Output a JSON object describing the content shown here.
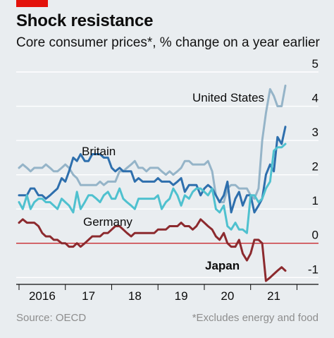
{
  "header": {
    "title": "Shock resistance",
    "subtitle": "Core consumer prices*, % change on a year earlier"
  },
  "footer": {
    "source": "Source: OECD",
    "footnote": "*Excludes energy and food"
  },
  "colors": {
    "background": "#e9edf0",
    "brand_red": "#e3120b",
    "grid": "#ffffff",
    "zero_line": "#c4161c"
  },
  "chart_data": {
    "type": "line",
    "title": "Shock resistance",
    "subtitle": "Core consumer prices*, % change on a year earlier",
    "xlabel": "",
    "ylabel": "",
    "x_tick_labels": [
      "2016",
      "17",
      "18",
      "19",
      "20",
      "21"
    ],
    "xlim": [
      2016.0,
      2021.75
    ],
    "ylim": [
      -1.2,
      5
    ],
    "y_ticks": [
      5,
      4,
      3,
      2,
      1,
      0,
      -1
    ],
    "y_tick_labels": [
      "5",
      "4",
      "3",
      "2",
      "1",
      "0",
      "-1"
    ],
    "grid": true,
    "series": [
      {
        "name": "United States",
        "color": "#95b4c8",
        "stroke_width": 3,
        "points": [
          [
            2016.0,
            2.2
          ],
          [
            2016.08,
            2.3
          ],
          [
            2016.17,
            2.2
          ],
          [
            2016.25,
            2.1
          ],
          [
            2016.33,
            2.2
          ],
          [
            2016.42,
            2.2
          ],
          [
            2016.5,
            2.2
          ],
          [
            2016.58,
            2.3
          ],
          [
            2016.67,
            2.2
          ],
          [
            2016.75,
            2.1
          ],
          [
            2016.83,
            2.1
          ],
          [
            2016.92,
            2.2
          ],
          [
            2017.0,
            2.3
          ],
          [
            2017.08,
            2.2
          ],
          [
            2017.17,
            2.0
          ],
          [
            2017.25,
            1.9
          ],
          [
            2017.33,
            1.7
          ],
          [
            2017.42,
            1.7
          ],
          [
            2017.5,
            1.7
          ],
          [
            2017.58,
            1.7
          ],
          [
            2017.67,
            1.7
          ],
          [
            2017.75,
            1.8
          ],
          [
            2017.83,
            1.7
          ],
          [
            2017.92,
            1.8
          ],
          [
            2018.0,
            1.8
          ],
          [
            2018.08,
            1.8
          ],
          [
            2018.17,
            2.1
          ],
          [
            2018.25,
            2.1
          ],
          [
            2018.33,
            2.2
          ],
          [
            2018.42,
            2.3
          ],
          [
            2018.5,
            2.4
          ],
          [
            2018.58,
            2.2
          ],
          [
            2018.67,
            2.2
          ],
          [
            2018.75,
            2.1
          ],
          [
            2018.83,
            2.2
          ],
          [
            2018.92,
            2.2
          ],
          [
            2019.0,
            2.2
          ],
          [
            2019.08,
            2.1
          ],
          [
            2019.17,
            2.0
          ],
          [
            2019.25,
            2.1
          ],
          [
            2019.33,
            2.0
          ],
          [
            2019.42,
            2.1
          ],
          [
            2019.5,
            2.2
          ],
          [
            2019.58,
            2.4
          ],
          [
            2019.67,
            2.4
          ],
          [
            2019.75,
            2.3
          ],
          [
            2019.83,
            2.3
          ],
          [
            2019.92,
            2.3
          ],
          [
            2020.0,
            2.3
          ],
          [
            2020.08,
            2.4
          ],
          [
            2020.17,
            2.1
          ],
          [
            2020.25,
            1.4
          ],
          [
            2020.33,
            1.2
          ],
          [
            2020.42,
            1.2
          ],
          [
            2020.5,
            1.6
          ],
          [
            2020.58,
            1.7
          ],
          [
            2020.67,
            1.7
          ],
          [
            2020.75,
            1.6
          ],
          [
            2020.83,
            1.6
          ],
          [
            2020.92,
            1.6
          ],
          [
            2021.0,
            1.4
          ],
          [
            2021.08,
            1.3
          ],
          [
            2021.17,
            1.6
          ],
          [
            2021.25,
            3.0
          ],
          [
            2021.33,
            3.8
          ],
          [
            2021.42,
            4.5
          ],
          [
            2021.5,
            4.3
          ],
          [
            2021.58,
            4.0
          ],
          [
            2021.67,
            4.0
          ],
          [
            2021.75,
            4.6
          ]
        ]
      },
      {
        "name": "Britain",
        "color": "#2e6fad",
        "stroke_width": 3,
        "points": [
          [
            2016.0,
            1.4
          ],
          [
            2016.08,
            1.4
          ],
          [
            2016.17,
            1.4
          ],
          [
            2016.25,
            1.6
          ],
          [
            2016.33,
            1.6
          ],
          [
            2016.42,
            1.4
          ],
          [
            2016.5,
            1.4
          ],
          [
            2016.58,
            1.3
          ],
          [
            2016.67,
            1.4
          ],
          [
            2016.75,
            1.5
          ],
          [
            2016.83,
            1.6
          ],
          [
            2016.92,
            1.9
          ],
          [
            2017.0,
            1.8
          ],
          [
            2017.08,
            2.1
          ],
          [
            2017.17,
            2.5
          ],
          [
            2017.25,
            2.4
          ],
          [
            2017.33,
            2.6
          ],
          [
            2017.42,
            2.4
          ],
          [
            2017.5,
            2.4
          ],
          [
            2017.58,
            2.6
          ],
          [
            2017.67,
            2.6
          ],
          [
            2017.75,
            2.6
          ],
          [
            2017.83,
            2.5
          ],
          [
            2017.92,
            2.5
          ],
          [
            2018.0,
            2.2
          ],
          [
            2018.08,
            2.1
          ],
          [
            2018.17,
            2.2
          ],
          [
            2018.25,
            2.1
          ],
          [
            2018.33,
            2.1
          ],
          [
            2018.42,
            2.1
          ],
          [
            2018.5,
            1.8
          ],
          [
            2018.58,
            1.9
          ],
          [
            2018.67,
            1.8
          ],
          [
            2018.75,
            1.8
          ],
          [
            2018.83,
            1.8
          ],
          [
            2018.92,
            1.8
          ],
          [
            2019.0,
            1.9
          ],
          [
            2019.08,
            1.8
          ],
          [
            2019.17,
            1.8
          ],
          [
            2019.25,
            1.8
          ],
          [
            2019.33,
            1.7
          ],
          [
            2019.42,
            1.8
          ],
          [
            2019.5,
            1.9
          ],
          [
            2019.58,
            1.5
          ],
          [
            2019.67,
            1.7
          ],
          [
            2019.75,
            1.7
          ],
          [
            2019.83,
            1.7
          ],
          [
            2019.92,
            1.4
          ],
          [
            2020.0,
            1.6
          ],
          [
            2020.08,
            1.7
          ],
          [
            2020.17,
            1.6
          ],
          [
            2020.25,
            1.4
          ],
          [
            2020.33,
            1.2
          ],
          [
            2020.42,
            1.4
          ],
          [
            2020.5,
            1.8
          ],
          [
            2020.58,
            0.9
          ],
          [
            2020.67,
            1.3
          ],
          [
            2020.75,
            1.5
          ],
          [
            2020.83,
            1.1
          ],
          [
            2020.92,
            1.4
          ],
          [
            2021.0,
            1.4
          ],
          [
            2021.08,
            0.9
          ],
          [
            2021.17,
            1.1
          ],
          [
            2021.25,
            1.3
          ],
          [
            2021.33,
            2.0
          ],
          [
            2021.42,
            2.3
          ],
          [
            2021.5,
            2.1
          ],
          [
            2021.58,
            3.1
          ],
          [
            2021.67,
            2.9
          ],
          [
            2021.75,
            3.4
          ]
        ]
      },
      {
        "name": "Germany",
        "color": "#4fc1cf",
        "stroke_width": 3,
        "points": [
          [
            2016.0,
            1.2
          ],
          [
            2016.08,
            1.0
          ],
          [
            2016.17,
            1.4
          ],
          [
            2016.25,
            1.0
          ],
          [
            2016.33,
            1.2
          ],
          [
            2016.42,
            1.3
          ],
          [
            2016.5,
            1.3
          ],
          [
            2016.58,
            1.2
          ],
          [
            2016.67,
            1.2
          ],
          [
            2016.75,
            1.1
          ],
          [
            2016.83,
            1.0
          ],
          [
            2016.92,
            1.3
          ],
          [
            2017.0,
            1.2
          ],
          [
            2017.08,
            1.1
          ],
          [
            2017.17,
            0.9
          ],
          [
            2017.25,
            1.5
          ],
          [
            2017.33,
            1.0
          ],
          [
            2017.42,
            1.2
          ],
          [
            2017.5,
            1.4
          ],
          [
            2017.58,
            1.4
          ],
          [
            2017.67,
            1.3
          ],
          [
            2017.75,
            1.2
          ],
          [
            2017.83,
            1.4
          ],
          [
            2017.92,
            1.5
          ],
          [
            2018.0,
            1.3
          ],
          [
            2018.08,
            1.3
          ],
          [
            2018.17,
            1.6
          ],
          [
            2018.25,
            1.3
          ],
          [
            2018.33,
            1.2
          ],
          [
            2018.42,
            1.1
          ],
          [
            2018.5,
            1.0
          ],
          [
            2018.58,
            1.3
          ],
          [
            2018.67,
            1.3
          ],
          [
            2018.75,
            1.3
          ],
          [
            2018.83,
            1.3
          ],
          [
            2018.92,
            1.3
          ],
          [
            2019.0,
            1.4
          ],
          [
            2019.08,
            1.0
          ],
          [
            2019.17,
            1.2
          ],
          [
            2019.25,
            1.3
          ],
          [
            2019.33,
            1.6
          ],
          [
            2019.42,
            1.4
          ],
          [
            2019.5,
            1.1
          ],
          [
            2019.58,
            1.4
          ],
          [
            2019.67,
            1.3
          ],
          [
            2019.75,
            1.5
          ],
          [
            2019.83,
            1.6
          ],
          [
            2019.92,
            1.6
          ],
          [
            2020.0,
            1.5
          ],
          [
            2020.08,
            1.4
          ],
          [
            2020.17,
            1.6
          ],
          [
            2020.25,
            1.0
          ],
          [
            2020.33,
            0.9
          ],
          [
            2020.42,
            1.1
          ],
          [
            2020.5,
            0.5
          ],
          [
            2020.58,
            0.4
          ],
          [
            2020.67,
            0.6
          ],
          [
            2020.75,
            0.4
          ],
          [
            2020.83,
            0.4
          ],
          [
            2020.92,
            0.3
          ],
          [
            2021.0,
            1.4
          ],
          [
            2021.08,
            1.4
          ],
          [
            2021.17,
            1.2
          ],
          [
            2021.25,
            1.3
          ],
          [
            2021.33,
            1.6
          ],
          [
            2021.42,
            1.8
          ],
          [
            2021.5,
            2.7
          ],
          [
            2021.58,
            2.8
          ],
          [
            2021.67,
            2.8
          ],
          [
            2021.75,
            2.9
          ]
        ]
      },
      {
        "name": "Japan",
        "color": "#8c2a2e",
        "stroke_width": 3,
        "points": [
          [
            2016.0,
            0.6
          ],
          [
            2016.08,
            0.7
          ],
          [
            2016.17,
            0.6
          ],
          [
            2016.25,
            0.6
          ],
          [
            2016.33,
            0.6
          ],
          [
            2016.42,
            0.5
          ],
          [
            2016.5,
            0.3
          ],
          [
            2016.58,
            0.2
          ],
          [
            2016.67,
            0.2
          ],
          [
            2016.75,
            0.1
          ],
          [
            2016.83,
            0.1
          ],
          [
            2016.92,
            0.0
          ],
          [
            2017.0,
            0.0
          ],
          [
            2017.08,
            -0.1
          ],
          [
            2017.17,
            -0.1
          ],
          [
            2017.25,
            0.0
          ],
          [
            2017.33,
            -0.1
          ],
          [
            2017.42,
            0.0
          ],
          [
            2017.5,
            0.1
          ],
          [
            2017.58,
            0.2
          ],
          [
            2017.67,
            0.2
          ],
          [
            2017.75,
            0.2
          ],
          [
            2017.83,
            0.3
          ],
          [
            2017.92,
            0.3
          ],
          [
            2018.0,
            0.4
          ],
          [
            2018.08,
            0.5
          ],
          [
            2018.17,
            0.5
          ],
          [
            2018.25,
            0.4
          ],
          [
            2018.33,
            0.3
          ],
          [
            2018.42,
            0.2
          ],
          [
            2018.5,
            0.3
          ],
          [
            2018.58,
            0.3
          ],
          [
            2018.67,
            0.3
          ],
          [
            2018.75,
            0.3
          ],
          [
            2018.83,
            0.3
          ],
          [
            2018.92,
            0.3
          ],
          [
            2019.0,
            0.4
          ],
          [
            2019.08,
            0.4
          ],
          [
            2019.17,
            0.4
          ],
          [
            2019.25,
            0.5
          ],
          [
            2019.33,
            0.5
          ],
          [
            2019.42,
            0.5
          ],
          [
            2019.5,
            0.6
          ],
          [
            2019.58,
            0.5
          ],
          [
            2019.67,
            0.5
          ],
          [
            2019.75,
            0.4
          ],
          [
            2019.83,
            0.5
          ],
          [
            2019.92,
            0.7
          ],
          [
            2020.0,
            0.6
          ],
          [
            2020.08,
            0.5
          ],
          [
            2020.17,
            0.4
          ],
          [
            2020.25,
            0.2
          ],
          [
            2020.33,
            0.1
          ],
          [
            2020.42,
            0.3
          ],
          [
            2020.5,
            0.0
          ],
          [
            2020.58,
            -0.1
          ],
          [
            2020.67,
            -0.1
          ],
          [
            2020.75,
            0.1
          ],
          [
            2020.83,
            -0.3
          ],
          [
            2020.92,
            -0.5
          ],
          [
            2021.0,
            -0.3
          ],
          [
            2021.08,
            0.1
          ],
          [
            2021.17,
            0.1
          ],
          [
            2021.25,
            0.0
          ],
          [
            2021.33,
            -1.1
          ],
          [
            2021.42,
            -1.0
          ],
          [
            2021.5,
            -0.9
          ],
          [
            2021.58,
            -0.8
          ],
          [
            2021.67,
            -0.7
          ],
          [
            2021.75,
            -0.8
          ]
        ]
      }
    ],
    "series_labels": [
      {
        "text": "United States",
        "series": "United States",
        "bold": false
      },
      {
        "text": "Britain",
        "series": "Britain",
        "bold": false
      },
      {
        "text": "Germany",
        "series": "Germany",
        "bold": false
      },
      {
        "text": "Japan",
        "series": "Japan",
        "bold": true
      }
    ]
  }
}
